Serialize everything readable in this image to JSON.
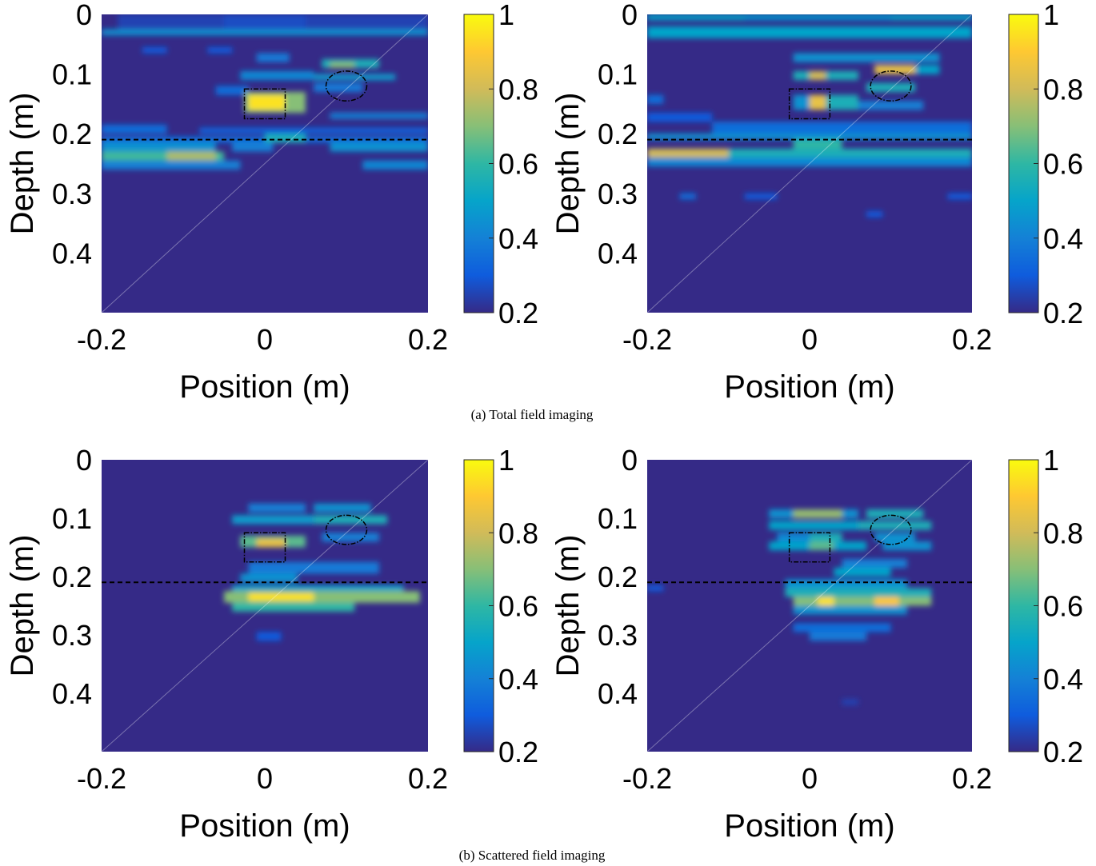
{
  "colors": {
    "parula": [
      "#352a87",
      "#0f5cdd",
      "#1481d6",
      "#06a4ca",
      "#2eb7a4",
      "#87bf77",
      "#d1bb59",
      "#fec832",
      "#f9fb0e"
    ],
    "annotation": "#000000",
    "background": "#ffffff"
  },
  "captions": {
    "a": "(a) Total field imaging",
    "b": "(b) Scattered field imaging"
  },
  "chart_data": [
    {
      "type": "heatmap",
      "title": "",
      "xlabel": "Position (m)",
      "ylabel": "Depth (m)",
      "xlim": [
        -0.2,
        0.2
      ],
      "ylim": [
        0,
        0.5
      ],
      "x_ticks": [
        "-0.2",
        "0",
        "0.2"
      ],
      "y_ticks": [
        "0",
        "0.1",
        "0.2",
        "0.3",
        "0.4"
      ],
      "colorbar": {
        "range": [
          0.2,
          1
        ],
        "ticks": [
          "0.2",
          "0.4",
          "0.6",
          "0.8",
          "1"
        ]
      },
      "interface_depth": 0.21,
      "targets": {
        "square": {
          "x": [
            -0.025,
            0.025
          ],
          "y": [
            0.125,
            0.175
          ]
        },
        "ellipse": {
          "cx": 0.1,
          "cy": 0.12,
          "rx": 0.025,
          "ry": 0.025
        }
      },
      "cells": [
        [
          -0.2,
          0.2,
          0.025,
          0.035,
          0.45
        ],
        [
          -0.18,
          0.2,
          0.0,
          0.025,
          0.25
        ],
        [
          -0.05,
          0.05,
          0.0,
          0.025,
          0.27
        ],
        [
          -0.15,
          -0.12,
          0.055,
          0.065,
          0.3
        ],
        [
          -0.07,
          -0.04,
          0.055,
          0.065,
          0.3
        ],
        [
          -0.01,
          0.03,
          0.065,
          0.08,
          0.38
        ],
        [
          0.07,
          0.14,
          0.075,
          0.09,
          0.55
        ],
        [
          0.08,
          0.11,
          0.08,
          0.09,
          0.7
        ],
        [
          -0.03,
          0.06,
          0.095,
          0.11,
          0.42
        ],
        [
          0.06,
          0.16,
          0.1,
          0.11,
          0.48
        ],
        [
          -0.06,
          -0.02,
          0.12,
          0.135,
          0.35
        ],
        [
          0.06,
          0.12,
          0.115,
          0.13,
          0.38
        ],
        [
          -0.025,
          0.05,
          0.13,
          0.165,
          0.7
        ],
        [
          -0.02,
          0.025,
          0.135,
          0.16,
          0.95
        ],
        [
          0.08,
          0.2,
          0.165,
          0.175,
          0.4
        ],
        [
          -0.2,
          -0.12,
          0.185,
          0.2,
          0.35
        ],
        [
          -0.08,
          0.2,
          0.19,
          0.2,
          0.32
        ],
        [
          -0.2,
          0.2,
          0.205,
          0.215,
          0.35
        ],
        [
          0.0,
          0.05,
          0.2,
          0.215,
          0.55
        ],
        [
          -0.2,
          -0.06,
          0.215,
          0.23,
          0.45
        ],
        [
          -0.2,
          -0.05,
          0.23,
          0.245,
          0.62
        ],
        [
          -0.12,
          -0.06,
          0.23,
          0.245,
          0.75
        ],
        [
          -0.04,
          0.01,
          0.215,
          0.23,
          0.4
        ],
        [
          0.08,
          0.2,
          0.215,
          0.23,
          0.45
        ],
        [
          -0.2,
          -0.03,
          0.245,
          0.26,
          0.4
        ],
        [
          0.12,
          0.2,
          0.245,
          0.26,
          0.42
        ]
      ]
    },
    {
      "type": "heatmap",
      "title": "",
      "xlabel": "Position (m)",
      "ylabel": "Depth (m)",
      "xlim": [
        -0.2,
        0.2
      ],
      "ylim": [
        0,
        0.5
      ],
      "x_ticks": [
        "-0.2",
        "0",
        "0.2"
      ],
      "y_ticks": [
        "0",
        "0.1",
        "0.2",
        "0.3",
        "0.4"
      ],
      "colorbar": {
        "range": [
          0.2,
          1
        ],
        "ticks": [
          "0.2",
          "0.4",
          "0.6",
          "0.8",
          "1"
        ]
      },
      "interface_depth": 0.21,
      "targets": {
        "square": {
          "x": [
            -0.025,
            0.025
          ],
          "y": [
            0.125,
            0.175
          ]
        },
        "ellipse": {
          "cx": 0.1,
          "cy": 0.12,
          "rx": 0.025,
          "ry": 0.025
        }
      },
      "cells": [
        [
          -0.2,
          0.2,
          0.0,
          0.01,
          0.5
        ],
        [
          -0.2,
          0.2,
          0.02,
          0.04,
          0.5
        ],
        [
          -0.08,
          0.1,
          0.005,
          0.01,
          0.42
        ],
        [
          -0.02,
          0.16,
          0.065,
          0.08,
          0.45
        ],
        [
          -0.02,
          0.0,
          0.095,
          0.11,
          0.55
        ],
        [
          0.0,
          0.02,
          0.095,
          0.11,
          0.8
        ],
        [
          0.02,
          0.06,
          0.095,
          0.11,
          0.55
        ],
        [
          0.08,
          0.13,
          0.085,
          0.1,
          0.85
        ],
        [
          0.13,
          0.16,
          0.085,
          0.1,
          0.5
        ],
        [
          -0.2,
          -0.18,
          0.135,
          0.15,
          0.35
        ],
        [
          -0.02,
          0.0,
          0.135,
          0.16,
          0.45
        ],
        [
          0.0,
          0.02,
          0.135,
          0.16,
          0.85
        ],
        [
          0.02,
          0.06,
          0.135,
          0.16,
          0.55
        ],
        [
          0.07,
          0.13,
          0.115,
          0.13,
          0.55
        ],
        [
          0.06,
          0.14,
          0.145,
          0.16,
          0.4
        ],
        [
          -0.2,
          -0.12,
          0.165,
          0.18,
          0.3
        ],
        [
          -0.12,
          0.2,
          0.18,
          0.2,
          0.35
        ],
        [
          -0.2,
          0.2,
          0.2,
          0.21,
          0.45
        ],
        [
          -0.02,
          0.04,
          0.21,
          0.225,
          0.6
        ],
        [
          -0.2,
          -0.1,
          0.225,
          0.24,
          0.8
        ],
        [
          -0.1,
          0.2,
          0.225,
          0.24,
          0.55
        ],
        [
          -0.2,
          0.2,
          0.24,
          0.255,
          0.42
        ],
        [
          -0.16,
          -0.14,
          0.3,
          0.31,
          0.35
        ],
        [
          -0.08,
          -0.04,
          0.3,
          0.31,
          0.3
        ],
        [
          0.07,
          0.09,
          0.33,
          0.34,
          0.3
        ],
        [
          0.17,
          0.2,
          0.3,
          0.31,
          0.3
        ]
      ]
    },
    {
      "type": "heatmap",
      "title": "",
      "xlabel": "Position (m)",
      "ylabel": "Depth (m)",
      "xlim": [
        -0.2,
        0.2
      ],
      "ylim": [
        0,
        0.5
      ],
      "x_ticks": [
        "-0.2",
        "0",
        "0.2"
      ],
      "y_ticks": [
        "0",
        "0.1",
        "0.2",
        "0.3",
        "0.4"
      ],
      "colorbar": {
        "range": [
          0.2,
          1
        ],
        "ticks": [
          "0.2",
          "0.4",
          "0.6",
          "0.8",
          "1"
        ]
      },
      "interface_depth": 0.21,
      "targets": {
        "square": {
          "x": [
            -0.025,
            0.025
          ],
          "y": [
            0.125,
            0.175
          ]
        },
        "ellipse": {
          "cx": 0.1,
          "cy": 0.12,
          "rx": 0.025,
          "ry": 0.025
        }
      },
      "cells": [
        [
          -0.02,
          0.05,
          0.075,
          0.09,
          0.4
        ],
        [
          0.06,
          0.13,
          0.075,
          0.09,
          0.45
        ],
        [
          -0.04,
          0.06,
          0.095,
          0.11,
          0.48
        ],
        [
          0.06,
          0.15,
          0.095,
          0.11,
          0.55
        ],
        [
          -0.03,
          0.05,
          0.13,
          0.15,
          0.65
        ],
        [
          -0.01,
          0.025,
          0.135,
          0.15,
          0.85
        ],
        [
          0.07,
          0.14,
          0.125,
          0.14,
          0.4
        ],
        [
          -0.02,
          0.14,
          0.175,
          0.195,
          0.38
        ],
        [
          -0.03,
          0.04,
          0.195,
          0.21,
          0.45
        ],
        [
          -0.04,
          0.17,
          0.215,
          0.225,
          0.5
        ],
        [
          -0.05,
          0.19,
          0.225,
          0.245,
          0.7
        ],
        [
          -0.02,
          0.06,
          0.228,
          0.242,
          0.95
        ],
        [
          -0.04,
          0.11,
          0.245,
          0.26,
          0.6
        ],
        [
          -0.01,
          0.02,
          0.295,
          0.31,
          0.3
        ]
      ]
    },
    {
      "type": "heatmap",
      "title": "",
      "xlabel": "Position (m)",
      "ylabel": "Depth (m)",
      "xlim": [
        -0.2,
        0.2
      ],
      "ylim": [
        0,
        0.5
      ],
      "x_ticks": [
        "-0.2",
        "0",
        "0.2"
      ],
      "y_ticks": [
        "0",
        "0.1",
        "0.2",
        "0.3",
        "0.4"
      ],
      "colorbar": {
        "range": [
          0.2,
          1
        ],
        "ticks": [
          "0.2",
          "0.4",
          "0.6",
          "0.8",
          "1"
        ]
      },
      "interface_depth": 0.21,
      "targets": {
        "square": {
          "x": [
            -0.025,
            0.025
          ],
          "y": [
            0.125,
            0.175
          ]
        },
        "ellipse": {
          "cx": 0.1,
          "cy": 0.12,
          "rx": 0.025,
          "ry": 0.025
        }
      },
      "cells": [
        [
          -0.05,
          0.06,
          0.085,
          0.1,
          0.45
        ],
        [
          -0.02,
          0.04,
          0.085,
          0.1,
          0.72
        ],
        [
          0.07,
          0.14,
          0.085,
          0.1,
          0.55
        ],
        [
          -0.05,
          0.07,
          0.105,
          0.12,
          0.5
        ],
        [
          0.06,
          0.15,
          0.105,
          0.12,
          0.55
        ],
        [
          -0.04,
          0.0,
          0.125,
          0.14,
          0.42
        ],
        [
          0.0,
          0.04,
          0.125,
          0.14,
          0.55
        ],
        [
          0.08,
          0.13,
          0.125,
          0.14,
          0.45
        ],
        [
          -0.05,
          0.07,
          0.14,
          0.155,
          0.5
        ],
        [
          0.0,
          0.03,
          0.14,
          0.155,
          0.65
        ],
        [
          0.09,
          0.15,
          0.14,
          0.155,
          0.45
        ],
        [
          0.04,
          0.12,
          0.17,
          0.185,
          0.4
        ],
        [
          0.03,
          0.1,
          0.185,
          0.2,
          0.5
        ],
        [
          -0.2,
          -0.18,
          0.215,
          0.225,
          0.3
        ],
        [
          -0.03,
          0.12,
          0.205,
          0.22,
          0.45
        ],
        [
          -0.03,
          0.15,
          0.22,
          0.235,
          0.55
        ],
        [
          -0.02,
          0.15,
          0.235,
          0.25,
          0.7
        ],
        [
          0.01,
          0.03,
          0.235,
          0.25,
          0.95
        ],
        [
          0.08,
          0.11,
          0.235,
          0.25,
          0.9
        ],
        [
          -0.02,
          0.12,
          0.25,
          0.265,
          0.45
        ],
        [
          -0.02,
          0.1,
          0.28,
          0.295,
          0.35
        ],
        [
          0.0,
          0.07,
          0.295,
          0.31,
          0.38
        ],
        [
          0.04,
          0.06,
          0.41,
          0.42,
          0.25
        ]
      ]
    }
  ]
}
